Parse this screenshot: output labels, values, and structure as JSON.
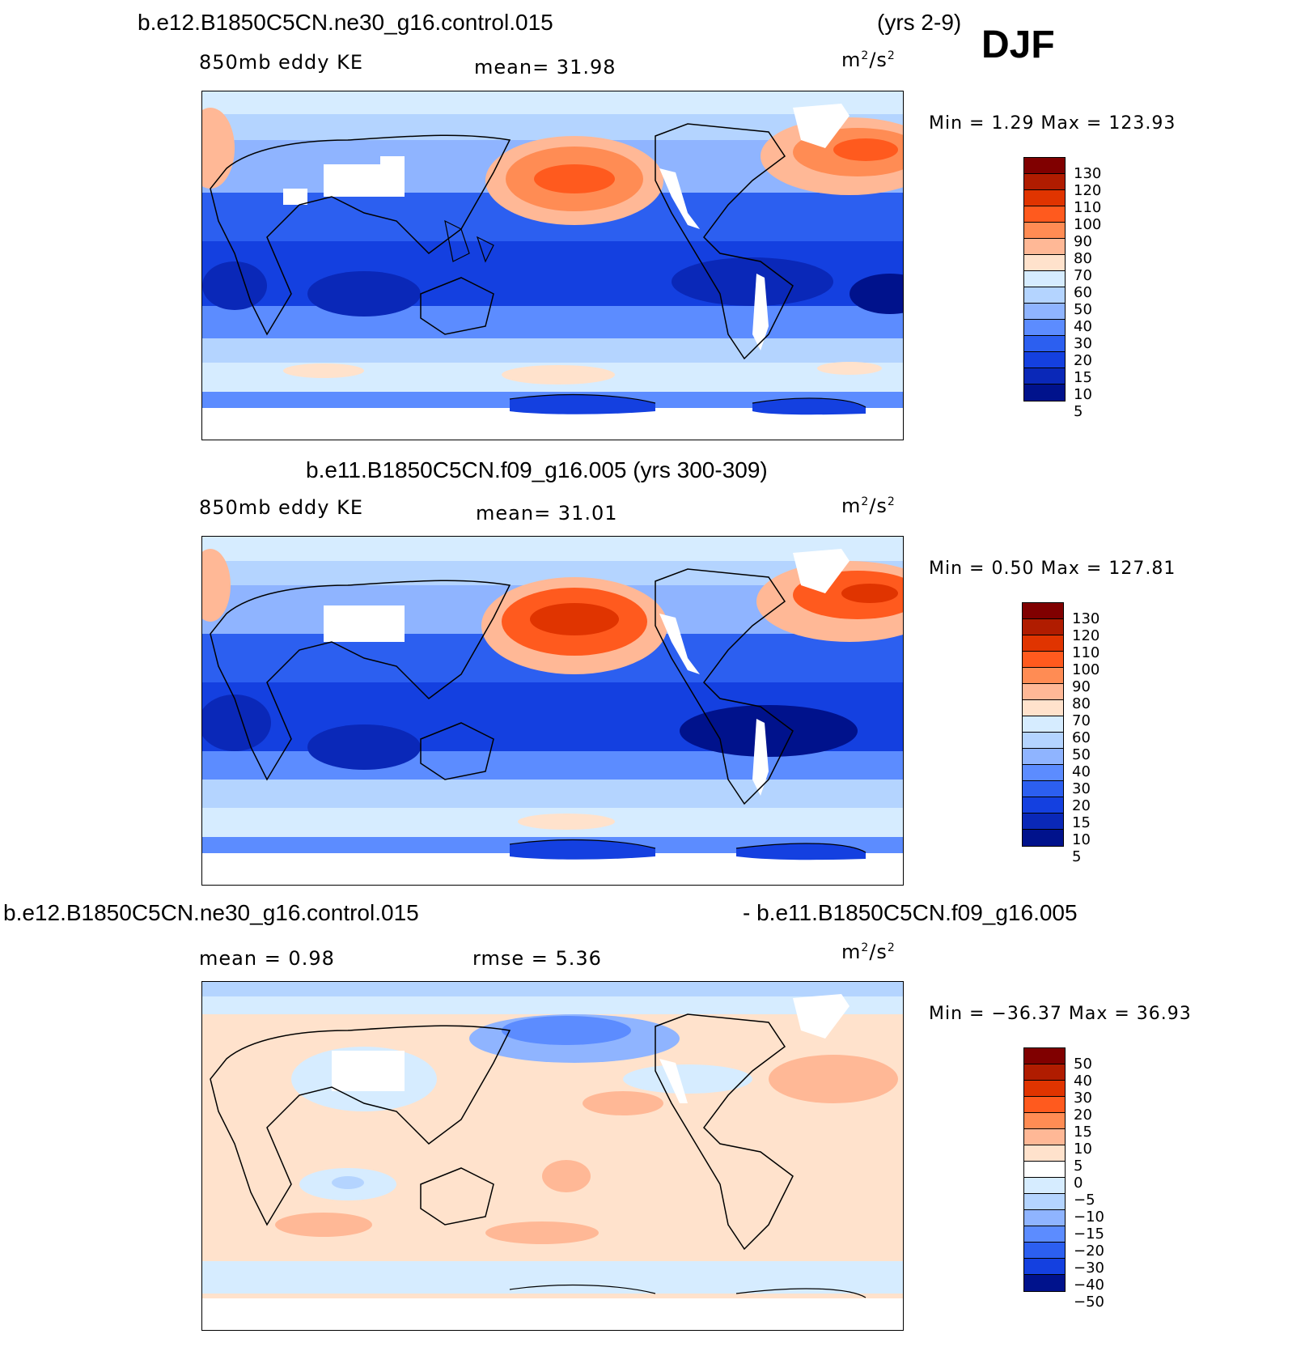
{
  "season": "DJF",
  "panels": [
    {
      "title_left": "b.e12.B1850C5CN.ne30_g16.control.015",
      "title_right": "(yrs 2-9)",
      "variable": "850mb eddy KE",
      "stat1": "mean=   31.98",
      "stat2": "",
      "units_base": "m",
      "units_exp": "2",
      "units_mid": "/s",
      "units_exp2": "2",
      "minmax": "Min  =     1.29  Max  =  123.93",
      "kind": "abs",
      "colorbar_labels": [
        "130",
        "120",
        "110",
        "100",
        "90",
        "80",
        "70",
        "60",
        "50",
        "40",
        "30",
        "20",
        "15",
        "10",
        "5"
      ]
    },
    {
      "title_left": "b.e11.B1850C5CN.f09_g16.005 (yrs 300-309)",
      "title_right": "",
      "variable": "850mb eddy KE",
      "stat1": "mean=   31.01",
      "stat2": "",
      "units_base": "m",
      "units_exp": "2",
      "units_mid": "/s",
      "units_exp2": "2",
      "minmax": "Min  =     0.50  Max  =  127.81",
      "kind": "abs",
      "colorbar_labels": [
        "130",
        "120",
        "110",
        "100",
        "90",
        "80",
        "70",
        "60",
        "50",
        "40",
        "30",
        "20",
        "15",
        "10",
        "5"
      ]
    },
    {
      "title_left": "b.e12.B1850C5CN.ne30_g16.control.015",
      "title_right": "- b.e11.B1850C5CN.f09_g16.005",
      "variable": "",
      "stat1": "mean  =     0.98",
      "stat2": "rmse  =     5.36",
      "units_base": "m",
      "units_exp": "2",
      "units_mid": "/s",
      "units_exp2": "2",
      "minmax": "Min  = −36.37  Max  =    36.93",
      "kind": "diff",
      "colorbar_labels": [
        "50",
        "40",
        "30",
        "20",
        "15",
        "10",
        "5",
        "0",
        "−5",
        "−10",
        "−15",
        "−20",
        "−30",
        "−40",
        "−50"
      ]
    }
  ],
  "colors": {
    "abs_scale": [
      "#800000",
      "#b01c00",
      "#e03400",
      "#ff5a1e",
      "#ff8c54",
      "#ffb896",
      "#ffe2cc",
      "#d6ecff",
      "#b4d4ff",
      "#8fb4ff",
      "#5c8cff",
      "#2c5ff0",
      "#1440e0",
      "#0a28b8",
      "#00128c"
    ],
    "diff_scale": [
      "#800000",
      "#b01c00",
      "#e03400",
      "#ff5a1e",
      "#ff8c54",
      "#ffb896",
      "#ffe2cc",
      "#ffffff",
      "#d6ecff",
      "#b4d4ff",
      "#8fb4ff",
      "#5c8cff",
      "#2c5ff0",
      "#1440e0",
      "#00128c"
    ]
  }
}
